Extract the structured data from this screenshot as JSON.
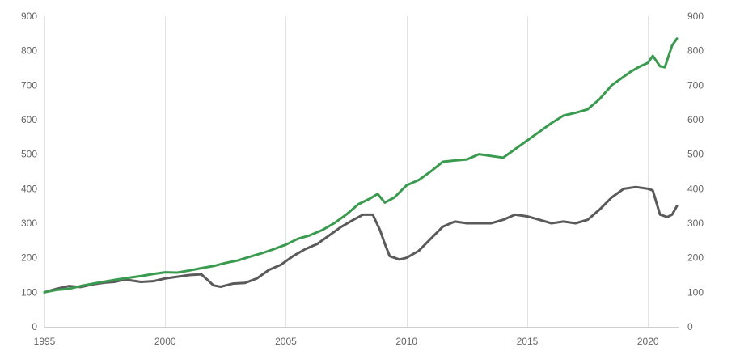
{
  "chart_data": {
    "type": "line",
    "title": "",
    "xlabel": "",
    "ylabel": "",
    "xlim": [
      1995,
      2021.3
    ],
    "ylim": [
      0,
      900
    ],
    "x_ticks": [
      1995,
      2000,
      2005,
      2010,
      2015,
      2020
    ],
    "y_ticks": [
      0,
      100,
      200,
      300,
      400,
      500,
      600,
      700,
      800,
      900
    ],
    "y_ticks_right": [
      0,
      100,
      200,
      300,
      400,
      500,
      600,
      700,
      800,
      900
    ],
    "grid": {
      "vertical": true,
      "horizontal": false
    },
    "legend": "none",
    "series": [
      {
        "color": "#3a9a4f",
        "points": [
          [
            1995.0,
            100
          ],
          [
            1995.5,
            107
          ],
          [
            1996.0,
            110
          ],
          [
            1996.5,
            118
          ],
          [
            1997.0,
            125
          ],
          [
            1997.5,
            131
          ],
          [
            1998.0,
            137
          ],
          [
            1998.5,
            142
          ],
          [
            1999.0,
            147
          ],
          [
            1999.5,
            153
          ],
          [
            2000.0,
            158
          ],
          [
            2000.5,
            157
          ],
          [
            2001.0,
            163
          ],
          [
            2001.5,
            170
          ],
          [
            2002.0,
            176
          ],
          [
            2002.5,
            185
          ],
          [
            2003.0,
            192
          ],
          [
            2003.5,
            203
          ],
          [
            2004.0,
            213
          ],
          [
            2004.5,
            225
          ],
          [
            2005.0,
            238
          ],
          [
            2005.5,
            255
          ],
          [
            2006.0,
            265
          ],
          [
            2006.5,
            280
          ],
          [
            2007.0,
            300
          ],
          [
            2007.5,
            325
          ],
          [
            2008.0,
            355
          ],
          [
            2008.5,
            372
          ],
          [
            2008.8,
            385
          ],
          [
            2009.1,
            360
          ],
          [
            2009.5,
            375
          ],
          [
            2010.0,
            410
          ],
          [
            2010.5,
            425
          ],
          [
            2011.0,
            450
          ],
          [
            2011.5,
            478
          ],
          [
            2012.0,
            482
          ],
          [
            2012.5,
            485
          ],
          [
            2013.0,
            500
          ],
          [
            2013.5,
            495
          ],
          [
            2014.0,
            490
          ],
          [
            2014.5,
            515
          ],
          [
            2015.0,
            540
          ],
          [
            2015.5,
            565
          ],
          [
            2016.0,
            590
          ],
          [
            2016.5,
            612
          ],
          [
            2017.0,
            620
          ],
          [
            2017.5,
            630
          ],
          [
            2018.0,
            660
          ],
          [
            2018.5,
            700
          ],
          [
            2019.0,
            725
          ],
          [
            2019.3,
            740
          ],
          [
            2019.6,
            752
          ],
          [
            2020.0,
            765
          ],
          [
            2020.2,
            785
          ],
          [
            2020.5,
            755
          ],
          [
            2020.7,
            752
          ],
          [
            2021.0,
            815
          ],
          [
            2021.2,
            835
          ]
        ]
      },
      {
        "color": "#5a5a5a",
        "points": [
          [
            1995.0,
            100
          ],
          [
            1995.5,
            110
          ],
          [
            1996.0,
            118
          ],
          [
            1996.5,
            115
          ],
          [
            1997.0,
            123
          ],
          [
            1997.5,
            128
          ],
          [
            1997.9,
            130
          ],
          [
            1998.2,
            135
          ],
          [
            1998.5,
            135
          ],
          [
            1999.0,
            130
          ],
          [
            1999.5,
            132
          ],
          [
            2000.0,
            140
          ],
          [
            2000.5,
            145
          ],
          [
            2001.0,
            150
          ],
          [
            2001.5,
            152
          ],
          [
            2001.8,
            133
          ],
          [
            2002.0,
            120
          ],
          [
            2002.3,
            116
          ],
          [
            2002.8,
            125
          ],
          [
            2003.3,
            127
          ],
          [
            2003.8,
            140
          ],
          [
            2004.3,
            165
          ],
          [
            2004.8,
            180
          ],
          [
            2005.3,
            205
          ],
          [
            2005.8,
            225
          ],
          [
            2006.3,
            240
          ],
          [
            2006.8,
            265
          ],
          [
            2007.3,
            290
          ],
          [
            2007.8,
            310
          ],
          [
            2008.2,
            325
          ],
          [
            2008.6,
            325
          ],
          [
            2008.9,
            280
          ],
          [
            2009.1,
            240
          ],
          [
            2009.3,
            205
          ],
          [
            2009.7,
            195
          ],
          [
            2010.0,
            200
          ],
          [
            2010.5,
            220
          ],
          [
            2011.0,
            255
          ],
          [
            2011.5,
            290
          ],
          [
            2012.0,
            305
          ],
          [
            2012.5,
            300
          ],
          [
            2013.0,
            300
          ],
          [
            2013.5,
            300
          ],
          [
            2014.0,
            310
          ],
          [
            2014.5,
            325
          ],
          [
            2015.0,
            320
          ],
          [
            2015.5,
            310
          ],
          [
            2016.0,
            300
          ],
          [
            2016.5,
            305
          ],
          [
            2017.0,
            300
          ],
          [
            2017.5,
            310
          ],
          [
            2018.0,
            340
          ],
          [
            2018.5,
            375
          ],
          [
            2019.0,
            400
          ],
          [
            2019.5,
            405
          ],
          [
            2020.0,
            400
          ],
          [
            2020.2,
            395
          ],
          [
            2020.5,
            325
          ],
          [
            2020.8,
            318
          ],
          [
            2021.0,
            325
          ],
          [
            2021.2,
            350
          ]
        ]
      }
    ]
  }
}
